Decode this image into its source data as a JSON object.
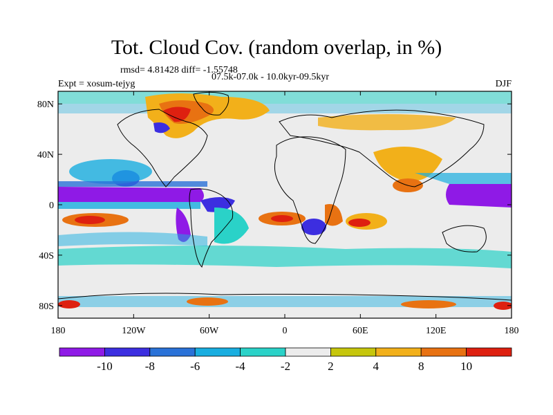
{
  "header": {
    "title": "Tot. Cloud Cov. (random overlap, in %)",
    "stats": "rmsd= 4.81428 diff= -1.55748",
    "period": "07.5k-07.0k - 10.0kyr-09.5kyr",
    "experiment": "Expt = xosum-tejyg",
    "season": "DJF"
  },
  "map": {
    "projection": "cylindrical-equidistant",
    "lon_range": [
      -180,
      180
    ],
    "lat_range": [
      -90,
      90
    ],
    "x_ticks": [
      {
        "value": -180,
        "label": "180"
      },
      {
        "value": -120,
        "label": "120W"
      },
      {
        "value": -60,
        "label": "60W"
      },
      {
        "value": 0,
        "label": "0"
      },
      {
        "value": 60,
        "label": "60E"
      },
      {
        "value": 120,
        "label": "120E"
      },
      {
        "value": 180,
        "label": "180"
      }
    ],
    "y_ticks": [
      {
        "value": 80,
        "label": "80N"
      },
      {
        "value": 40,
        "label": "40N"
      },
      {
        "value": 0,
        "label": "0"
      },
      {
        "value": -40,
        "label": "40S"
      },
      {
        "value": -80,
        "label": "80S"
      }
    ]
  },
  "colorbar": {
    "levels": [
      -10,
      -8,
      -6,
      -4,
      -2,
      2,
      4,
      8,
      10
    ],
    "labels": [
      "-10",
      "-8",
      "-6",
      "-4",
      "-2",
      "2",
      "4",
      "8",
      "10"
    ],
    "colors": [
      "#8f1ae6",
      "#3c2ee0",
      "#2a72d8",
      "#19aee0",
      "#2ad2c8",
      "#ececec",
      "#c6c60c",
      "#f2b01a",
      "#e87212",
      "#de2010"
    ]
  },
  "colors": {
    "land_outline": "#000000",
    "background": "#ffffff",
    "neutral": "#ececec"
  }
}
